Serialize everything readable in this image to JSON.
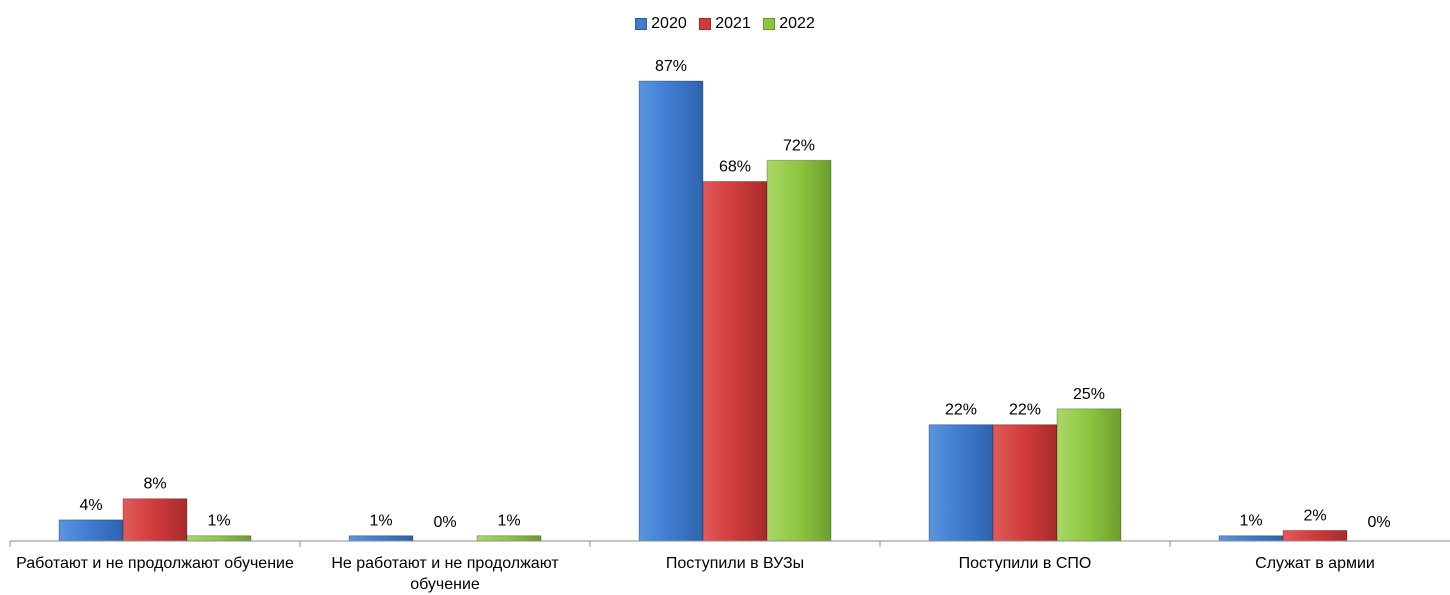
{
  "chart_data": {
    "type": "bar",
    "categories": [
      "Работают и не продолжают обучение",
      "Не работают и не продолжают обучение",
      "Поступили в ВУЗы",
      "Поступили в СПО",
      "Служат в армии"
    ],
    "series": [
      {
        "name": "2020",
        "color": "#3E7BD0",
        "values": [
          4,
          1,
          87,
          22,
          1
        ]
      },
      {
        "name": "2021",
        "color": "#D03B3B",
        "values": [
          8,
          0,
          68,
          22,
          2
        ]
      },
      {
        "name": "2022",
        "color": "#8DC63F",
        "values": [
          1,
          1,
          72,
          25,
          0
        ]
      }
    ],
    "value_labels": [
      [
        "4%",
        "1%",
        "87%",
        "22%",
        "1%"
      ],
      [
        "8%",
        "0%",
        "68%",
        "22%",
        "2%"
      ],
      [
        "1%",
        "1%",
        "72%",
        "25%",
        "0%"
      ]
    ],
    "ylim": [
      0,
      87
    ],
    "grid": false,
    "legend_position": "top-center"
  }
}
